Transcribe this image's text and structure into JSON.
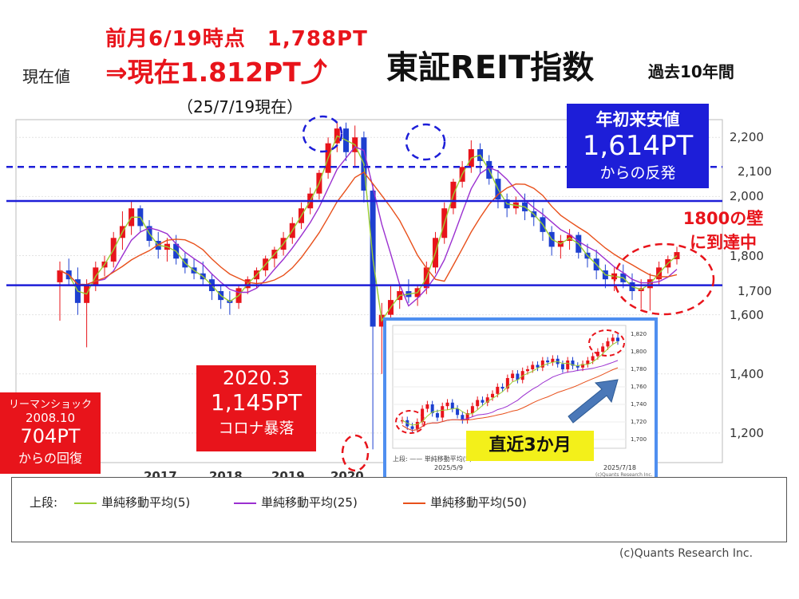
{
  "header": {
    "current_label": "現在値",
    "prev_line": "前月6/19時点　1,788PT",
    "now_line": "⇒現在1.812PT⤴",
    "title": "東証REIT指数",
    "subtitle": "過去10年間",
    "asof": "（25/7/19現在）"
  },
  "callouts": {
    "low": {
      "l1": "年初来安値",
      "l2": "1,614PT",
      "l3": "からの反発"
    },
    "wall": {
      "l1": "1800の壁",
      "l2": "に到達中"
    },
    "covid": {
      "l1": "2020.3",
      "l2": "1,145PT",
      "l3": "コロナ暴落"
    },
    "lehman": {
      "l1": "リーマンショック",
      "l2": "2008.10",
      "l3": "704PT",
      "l4": "からの回復"
    },
    "inset_label": "直近3か月"
  },
  "legend": {
    "prefix": "上段:",
    "items": [
      {
        "label": "単純移動平均(5)",
        "color": "#9acd32"
      },
      {
        "label": "単純移動平均(25)",
        "color": "#9b30d0"
      },
      {
        "label": "単純移動平均(50)",
        "color": "#e8501b"
      }
    ]
  },
  "credit": "(c)Quants Research Inc.",
  "inset": {
    "yticks": [
      "1,820",
      "1,800",
      "1,780",
      "1,760",
      "1,740",
      "1,720",
      "1,700"
    ],
    "xticks": [
      "2025/5/9",
      "2025/7/18"
    ],
    "legend_text": "上段: —— 単純移動平均(5)",
    "credit": "(c)Quants Research Inc."
  },
  "chart_data": {
    "type": "line",
    "subtype": "candlestick",
    "ylim": [
      1100,
      2260
    ],
    "yticks": [
      1200,
      1400,
      1600,
      1800,
      2000,
      2200
    ],
    "ytick_labels": [
      "1,200",
      "1,400",
      "1,600",
      "1,800",
      "2,000",
      "2,200"
    ],
    "xticks": [
      "2017",
      "2018",
      "2019",
      "2020"
    ],
    "reference_lines": [
      {
        "label": "2,100",
        "value": 2100,
        "style": "dashed",
        "color": "#1d1ed8"
      },
      {
        "label": "1,700",
        "value": 1700,
        "style": "solid",
        "color": "#1d1ed8"
      },
      {
        "value": 1985,
        "style": "solid",
        "color": "#1d1ed8"
      }
    ],
    "candles_monthly": [
      [
        1710,
        1780,
        1580,
        1750
      ],
      [
        1750,
        1790,
        1700,
        1720
      ],
      [
        1720,
        1760,
        1600,
        1640
      ],
      [
        1640,
        1720,
        1490,
        1700
      ],
      [
        1700,
        1780,
        1680,
        1760
      ],
      [
        1760,
        1800,
        1730,
        1780
      ],
      [
        1780,
        1880,
        1760,
        1860
      ],
      [
        1860,
        1950,
        1820,
        1900
      ],
      [
        1900,
        1985,
        1870,
        1960
      ],
      [
        1960,
        1970,
        1880,
        1900
      ],
      [
        1900,
        1920,
        1830,
        1850
      ],
      [
        1850,
        1880,
        1790,
        1820
      ],
      [
        1820,
        1860,
        1780,
        1840
      ],
      [
        1840,
        1870,
        1770,
        1790
      ],
      [
        1790,
        1810,
        1740,
        1760
      ],
      [
        1760,
        1790,
        1720,
        1740
      ],
      [
        1740,
        1780,
        1700,
        1720
      ],
      [
        1720,
        1740,
        1650,
        1680
      ],
      [
        1680,
        1700,
        1620,
        1650
      ],
      [
        1650,
        1680,
        1600,
        1640
      ],
      [
        1640,
        1700,
        1620,
        1690
      ],
      [
        1690,
        1730,
        1670,
        1720
      ],
      [
        1720,
        1760,
        1690,
        1750
      ],
      [
        1750,
        1800,
        1730,
        1790
      ],
      [
        1790,
        1830,
        1760,
        1820
      ],
      [
        1820,
        1880,
        1800,
        1860
      ],
      [
        1860,
        1930,
        1840,
        1910
      ],
      [
        1910,
        1980,
        1890,
        1960
      ],
      [
        1960,
        2030,
        1940,
        2010
      ],
      [
        2010,
        2090,
        1990,
        2080
      ],
      [
        2080,
        2200,
        2060,
        2180
      ],
      [
        2180,
        2250,
        2150,
        2230
      ],
      [
        2230,
        2250,
        2120,
        2150
      ],
      [
        2150,
        2240,
        2100,
        2200
      ],
      [
        2200,
        2220,
        1980,
        2020
      ],
      [
        2020,
        2040,
        1145,
        1560
      ],
      [
        1560,
        1640,
        1400,
        1600
      ],
      [
        1600,
        1700,
        1580,
        1650
      ],
      [
        1650,
        1700,
        1620,
        1680
      ],
      [
        1680,
        1720,
        1640,
        1660
      ],
      [
        1660,
        1700,
        1630,
        1690
      ],
      [
        1690,
        1780,
        1670,
        1760
      ],
      [
        1760,
        1880,
        1740,
        1860
      ],
      [
        1860,
        1980,
        1840,
        1960
      ],
      [
        1960,
        2060,
        1940,
        2050
      ],
      [
        2050,
        2120,
        2030,
        2100
      ],
      [
        2100,
        2190,
        2080,
        2160
      ],
      [
        2160,
        2180,
        2080,
        2120
      ],
      [
        2120,
        2140,
        2040,
        2060
      ],
      [
        2060,
        2090,
        1960,
        1990
      ],
      [
        1990,
        2010,
        1930,
        1960
      ],
      [
        1960,
        2000,
        1940,
        1980
      ],
      [
        1980,
        2010,
        1920,
        1950
      ],
      [
        1950,
        1990,
        1900,
        1930
      ],
      [
        1930,
        1960,
        1850,
        1880
      ],
      [
        1880,
        1900,
        1800,
        1830
      ],
      [
        1830,
        1870,
        1790,
        1850
      ],
      [
        1850,
        1890,
        1820,
        1870
      ],
      [
        1870,
        1880,
        1790,
        1810
      ],
      [
        1810,
        1840,
        1760,
        1790
      ],
      [
        1790,
        1820,
        1720,
        1750
      ],
      [
        1750,
        1770,
        1690,
        1720
      ],
      [
        1720,
        1760,
        1680,
        1740
      ],
      [
        1740,
        1770,
        1690,
        1710
      ],
      [
        1710,
        1740,
        1650,
        1680
      ],
      [
        1680,
        1720,
        1620,
        1690
      ],
      [
        1690,
        1740,
        1614,
        1720
      ],
      [
        1720,
        1780,
        1700,
        1760
      ],
      [
        1760,
        1800,
        1740,
        1788
      ],
      [
        1788,
        1830,
        1770,
        1812
      ]
    ],
    "sma_note": "moving averages drawn from candle closes (5, 25, 50 periods)"
  }
}
